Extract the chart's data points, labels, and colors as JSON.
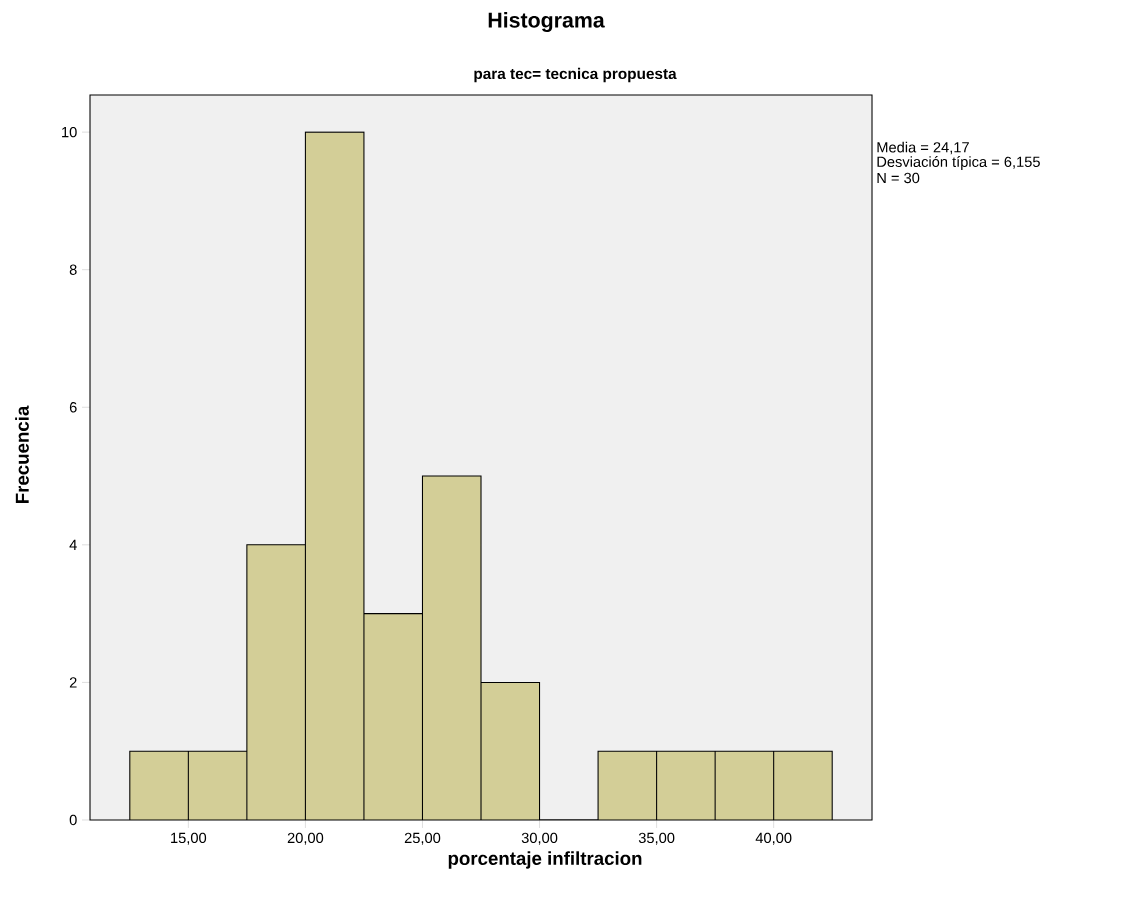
{
  "chart_data": {
    "type": "histogram",
    "title": "Histograma",
    "subtitle": "para tec= tecnica propuesta",
    "xlabel": "porcentaje infiltracion",
    "ylabel": "Frecuencia",
    "annotations": [
      "Media = 24,17",
      "Desviación típica = 6,155",
      "N = 30"
    ],
    "bins": [
      12.5,
      15,
      17.5,
      20,
      22.5,
      25,
      27.5,
      30,
      32.5,
      35,
      37.5,
      40,
      42.5
    ],
    "values": [
      1,
      1,
      4,
      10,
      3,
      5,
      2,
      0,
      1,
      1,
      1,
      1
    ],
    "color": "#d3ce97",
    "xlim": [
      10.8,
      44.2
    ],
    "ylim": [
      0,
      10.54
    ],
    "xticks": [
      {
        "value": 15,
        "label": "15,00"
      },
      {
        "value": 20,
        "label": "20,00"
      },
      {
        "value": 25,
        "label": "25,00"
      },
      {
        "value": 30,
        "label": "30,00"
      },
      {
        "value": 35,
        "label": "35,00"
      },
      {
        "value": 40,
        "label": "40,00"
      }
    ],
    "yticks": [
      0,
      2,
      4,
      6,
      8,
      10
    ]
  }
}
